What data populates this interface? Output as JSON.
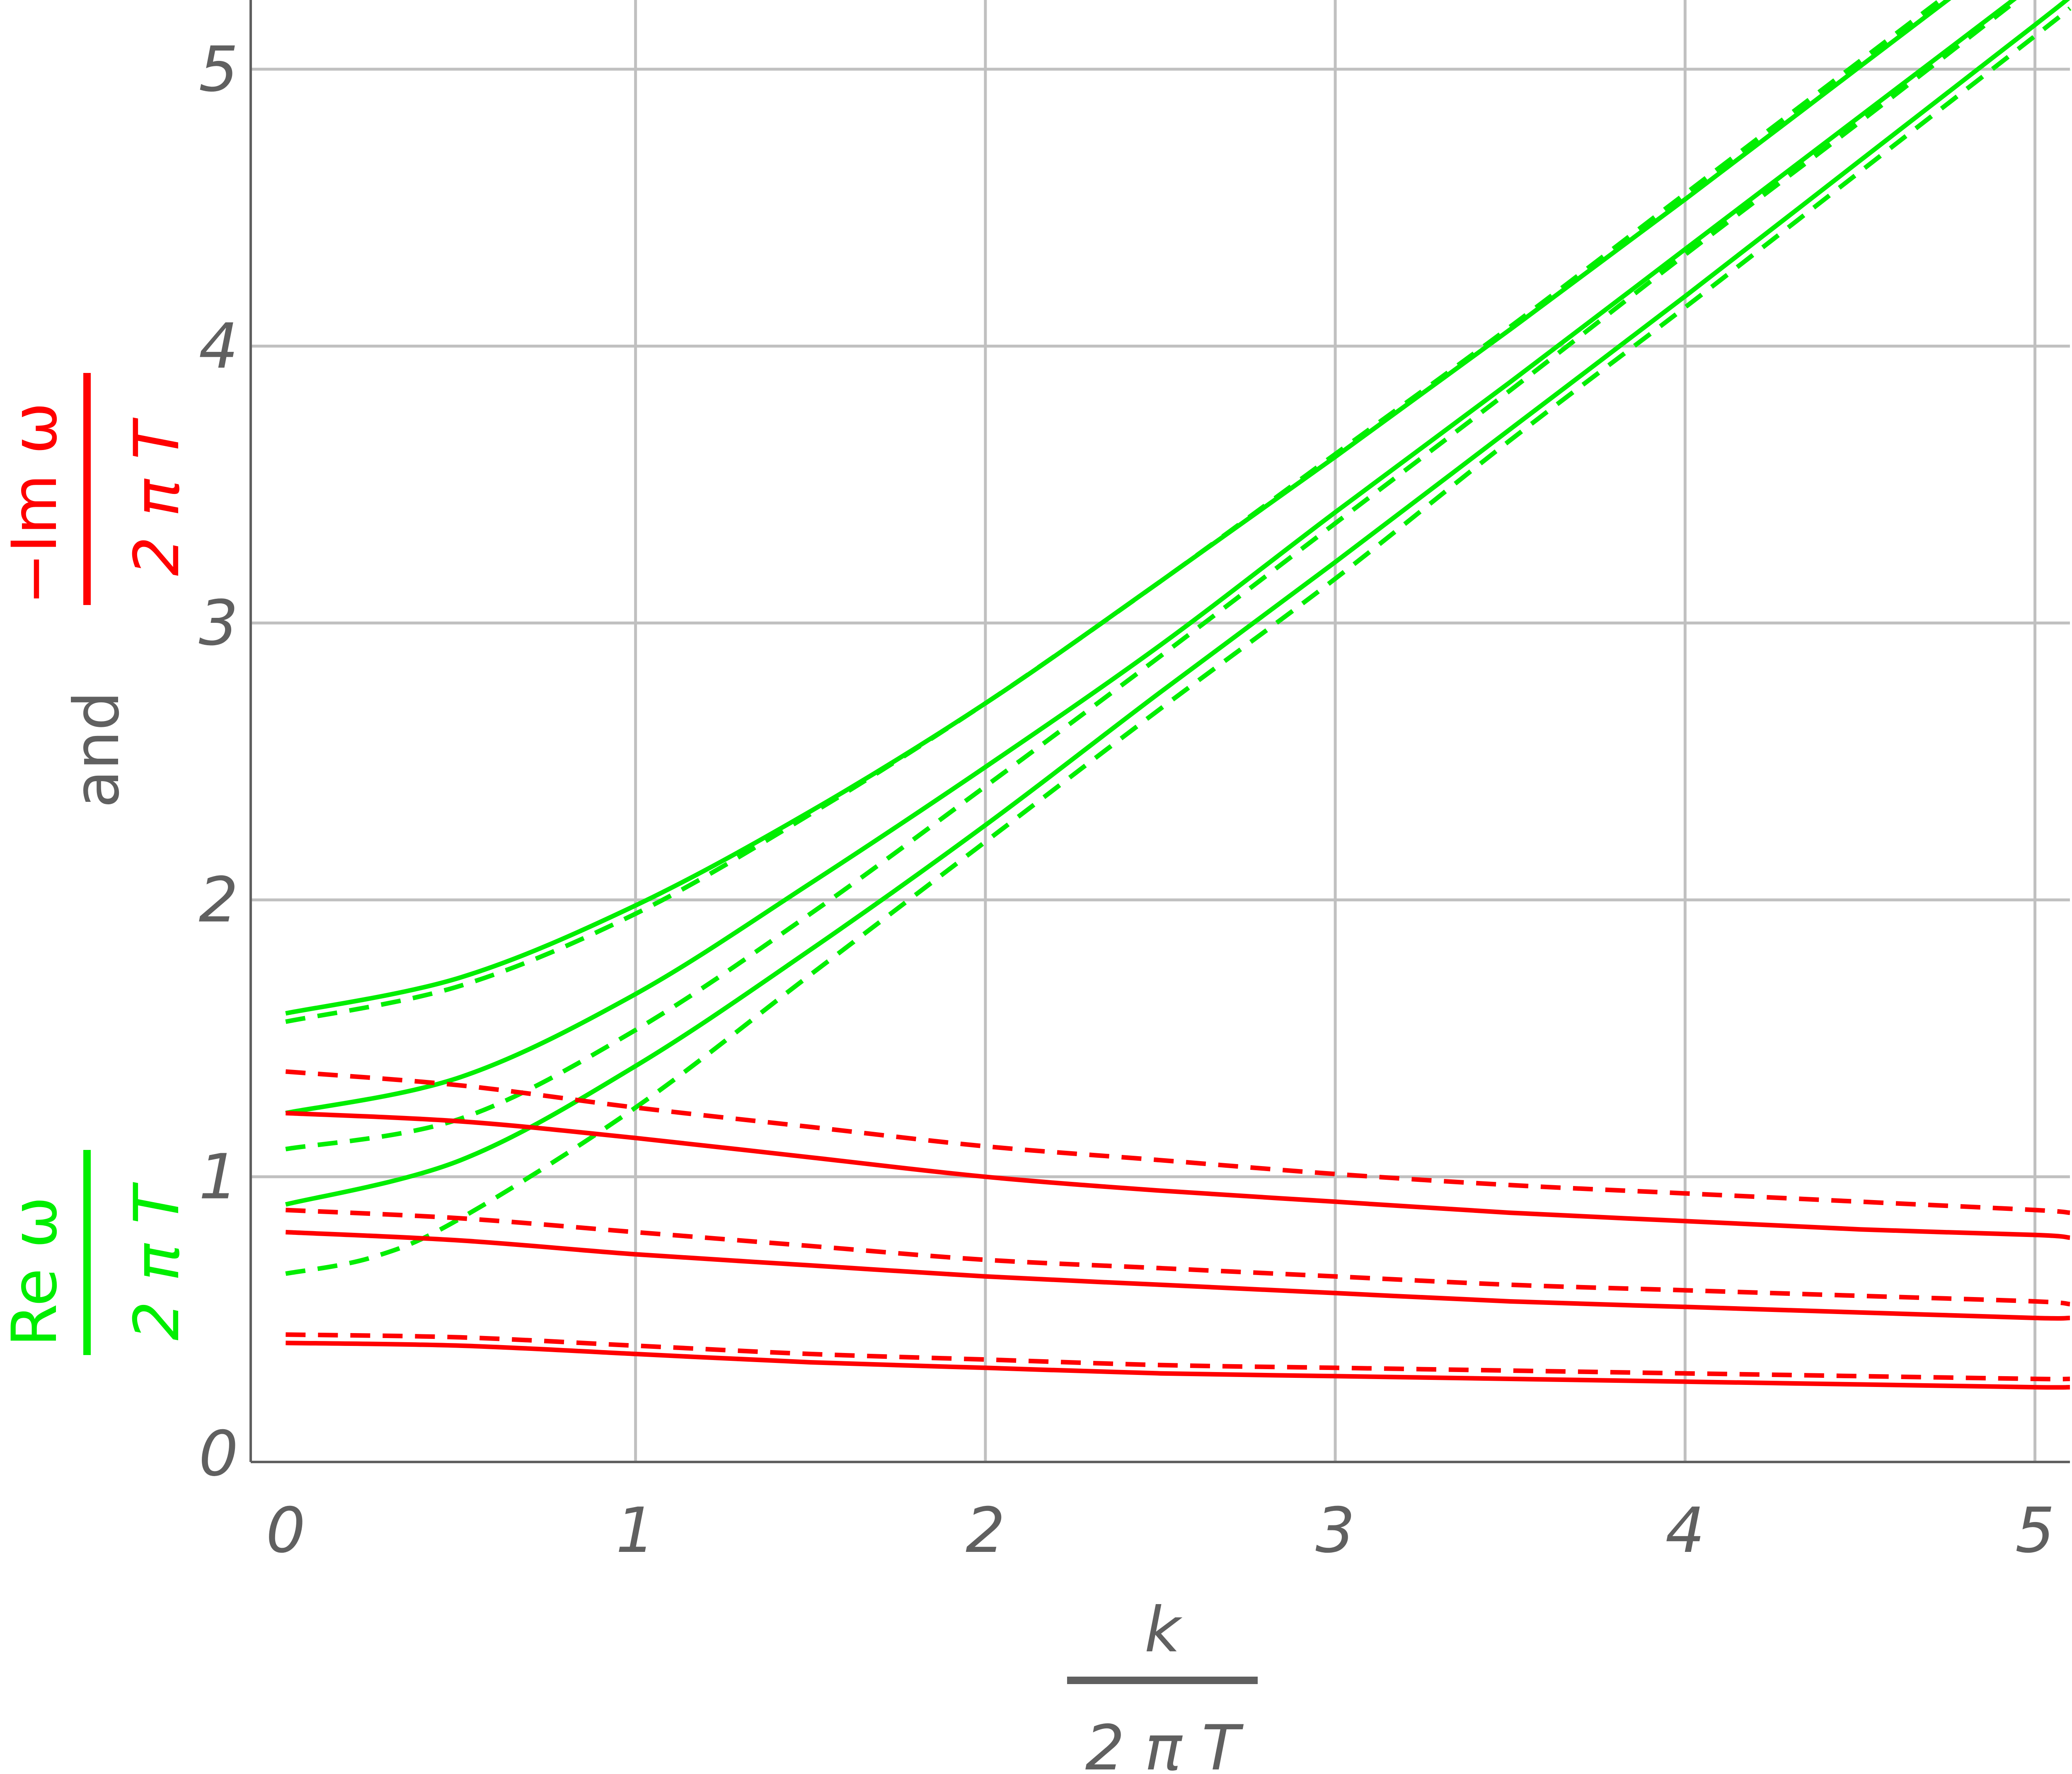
{
  "chart_data": {
    "type": "line",
    "xlabel": {
      "numerator": "k",
      "denominator": "2 π T"
    },
    "ylabel": {
      "re_numerator": "Re ω",
      "re_denominator": "2 π T",
      "joiner": "and",
      "im_numerator": "−Im ω",
      "im_denominator": "2 π T"
    },
    "xlim": [
      -0.1,
      5.1
    ],
    "ylim": [
      -0.03,
      5.25
    ],
    "x_ticks": [
      "0",
      "1",
      "2",
      "3",
      "4",
      "5"
    ],
    "y_ticks": [
      "0",
      "1",
      "2",
      "3",
      "4",
      "5"
    ],
    "grid": true,
    "colors": {
      "real": "#00ee00",
      "imag": "#ff0000",
      "axis": "#606060",
      "grid": "#c0c0c0"
    },
    "series": [
      {
        "part": "real",
        "style": "solid",
        "x": [
          0,
          0.5,
          1,
          1.5,
          2,
          2.5,
          3,
          3.5,
          4,
          4.5,
          5,
          5.1
        ],
        "y": [
          1.59,
          1.72,
          1.98,
          2.32,
          2.71,
          3.15,
          3.6,
          4.06,
          4.53,
          5.01,
          5.49,
          5.59
        ]
      },
      {
        "part": "real",
        "style": "dashed",
        "x": [
          0,
          0.5,
          1,
          1.5,
          2,
          2.5,
          3,
          3.5,
          4,
          4.5,
          5,
          5.1
        ],
        "y": [
          1.56,
          1.69,
          1.95,
          2.31,
          2.71,
          3.15,
          3.61,
          4.07,
          4.55,
          5.03,
          5.51,
          5.61
        ]
      },
      {
        "part": "real",
        "style": "solid",
        "x": [
          0,
          0.5,
          1,
          1.5,
          2,
          2.5,
          3,
          3.5,
          4,
          4.5,
          5,
          5.1
        ],
        "y": [
          1.23,
          1.36,
          1.66,
          2.06,
          2.48,
          2.92,
          3.4,
          3.87,
          4.35,
          4.83,
          5.31,
          5.41
        ]
      },
      {
        "part": "real",
        "style": "dashed",
        "x": [
          0,
          0.5,
          1,
          1.5,
          2,
          2.5,
          3,
          3.5,
          4,
          4.5,
          5,
          5.1
        ],
        "y": [
          1.1,
          1.21,
          1.53,
          1.95,
          2.41,
          2.88,
          3.36,
          3.84,
          4.33,
          4.81,
          5.3,
          5.4
        ]
      },
      {
        "part": "real",
        "style": "solid",
        "x": [
          0,
          0.5,
          1,
          1.5,
          2,
          2.5,
          3,
          3.5,
          4,
          4.5,
          5,
          5.1
        ],
        "y": [
          0.9,
          1.06,
          1.4,
          1.82,
          2.27,
          2.75,
          3.22,
          3.7,
          4.18,
          4.67,
          5.16,
          5.26
        ]
      },
      {
        "part": "real",
        "style": "dashed",
        "x": [
          0,
          0.25,
          0.5,
          1,
          1.5,
          2,
          2.5,
          3,
          3.5,
          4,
          4.5,
          5,
          5.1
        ],
        "y": [
          0.65,
          0.71,
          0.85,
          1.25,
          1.73,
          2.21,
          2.69,
          3.16,
          3.66,
          4.14,
          4.63,
          5.12,
          5.22
        ]
      },
      {
        "part": "imag",
        "style": "dashed",
        "x": [
          0,
          0.5,
          1,
          1.5,
          2,
          2.5,
          3,
          3.5,
          4,
          4.5,
          5,
          5.1
        ],
        "y": [
          1.38,
          1.33,
          1.25,
          1.18,
          1.11,
          1.06,
          1.01,
          0.97,
          0.94,
          0.91,
          0.88,
          0.87
        ]
      },
      {
        "part": "imag",
        "style": "solid",
        "x": [
          0,
          0.5,
          1,
          1.5,
          2,
          2.5,
          3,
          3.5,
          4,
          4.5,
          5,
          5.1
        ],
        "y": [
          1.23,
          1.2,
          1.14,
          1.07,
          1.0,
          0.95,
          0.91,
          0.87,
          0.84,
          0.81,
          0.79,
          0.78
        ]
      },
      {
        "part": "imag",
        "style": "dashed",
        "x": [
          0,
          0.5,
          1,
          1.5,
          2,
          2.5,
          3,
          3.5,
          4,
          4.5,
          5,
          5.1
        ],
        "y": [
          0.88,
          0.85,
          0.8,
          0.75,
          0.7,
          0.67,
          0.64,
          0.61,
          0.59,
          0.57,
          0.55,
          0.54
        ]
      },
      {
        "part": "imag",
        "style": "solid",
        "x": [
          0,
          0.5,
          1,
          1.5,
          2,
          2.5,
          3,
          3.5,
          4,
          4.5,
          5,
          5.1
        ],
        "y": [
          0.8,
          0.77,
          0.72,
          0.68,
          0.64,
          0.61,
          0.58,
          0.55,
          0.53,
          0.51,
          0.49,
          0.49
        ]
      },
      {
        "part": "imag",
        "style": "dashed",
        "x": [
          0,
          0.5,
          1,
          1.5,
          2,
          2.5,
          3,
          3.5,
          4,
          4.5,
          5,
          5.1
        ],
        "y": [
          0.43,
          0.42,
          0.39,
          0.36,
          0.34,
          0.32,
          0.31,
          0.3,
          0.29,
          0.28,
          0.27,
          0.27
        ]
      },
      {
        "part": "imag",
        "style": "solid",
        "x": [
          0,
          0.5,
          1,
          1.5,
          2,
          2.5,
          3,
          3.5,
          4,
          4.5,
          5,
          5.1
        ],
        "y": [
          0.4,
          0.39,
          0.36,
          0.33,
          0.31,
          0.29,
          0.28,
          0.27,
          0.26,
          0.25,
          0.24,
          0.24
        ]
      }
    ]
  }
}
